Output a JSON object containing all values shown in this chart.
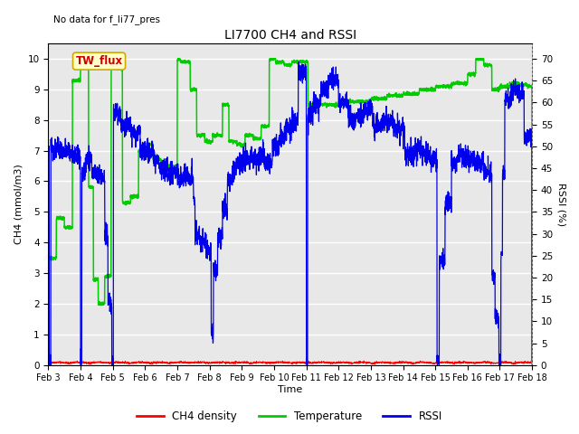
{
  "title": "LI7700 CH4 and RSSI",
  "top_left_text": "No data for f_li77_pres",
  "box_label": "TW_flux",
  "xlabel": "Time",
  "ylabel_left": "CH4 (mmol/m3)",
  "ylabel_right": "RSSI (%)",
  "xlim": [
    0,
    15
  ],
  "ylim_left": [
    0.0,
    10.5
  ],
  "ylim_right": [
    0,
    73.5
  ],
  "yticks_left": [
    0.0,
    1.0,
    2.0,
    3.0,
    4.0,
    5.0,
    6.0,
    7.0,
    8.0,
    9.0,
    10.0
  ],
  "yticks_right": [
    0,
    5,
    10,
    15,
    20,
    25,
    30,
    35,
    40,
    45,
    50,
    55,
    60,
    65,
    70
  ],
  "xtick_labels": [
    "Feb 3",
    "Feb 4",
    "Feb 5",
    "Feb 6",
    "Feb 7",
    "Feb 8",
    "Feb 9",
    "Feb 10",
    "Feb 11",
    "Feb 12",
    "Feb 13",
    "Feb 14",
    "Feb 15",
    "Feb 16",
    "Feb 17",
    "Feb 18"
  ],
  "fig_bg_color": "#ffffff",
  "plot_bg_color": "#e8e8e8",
  "line_ch4_color": "#ff0000",
  "line_temp_color": "#00cc00",
  "line_rssi_color": "#0000ee",
  "legend_labels": [
    "CH4 density",
    "Temperature",
    "RSSI"
  ],
  "legend_colors": [
    "#ff0000",
    "#00cc00",
    "#0000ee"
  ],
  "box_facecolor": "#ffffcc",
  "box_edgecolor": "#ccaa00",
  "box_textcolor": "#cc0000"
}
